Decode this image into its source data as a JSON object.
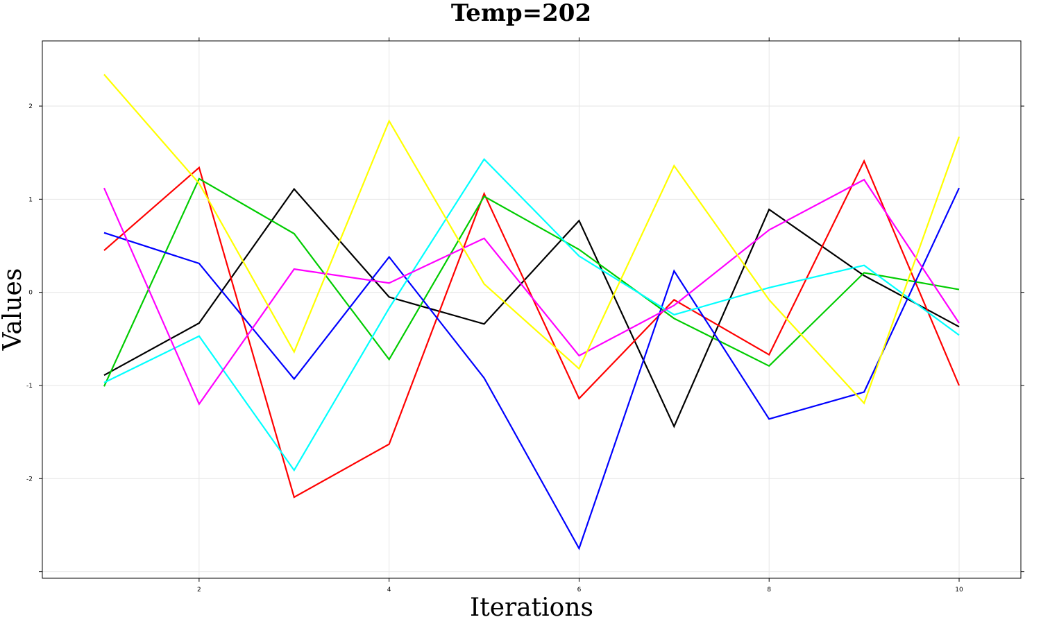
{
  "chart_data": {
    "type": "line",
    "title": "Temp=202",
    "xlabel": "Iterations",
    "ylabel": "Values",
    "xlim": [
      0.35,
      10.65
    ],
    "ylim": [
      -3.07,
      2.7
    ],
    "x_ticks": [
      2,
      4,
      6,
      8,
      10
    ],
    "y_ticks": [
      -3,
      -2,
      -1,
      0,
      1,
      2
    ],
    "y_tick_labels": [
      "",
      "-2",
      "-1",
      "0",
      "1",
      "2"
    ],
    "grid": true,
    "x": [
      1,
      2,
      3,
      4,
      5,
      6,
      7,
      8,
      9,
      10
    ],
    "series": [
      {
        "color": "#000000",
        "values": [
          -0.89,
          -0.33,
          1.11,
          -0.05,
          -0.34,
          0.77,
          -1.44,
          0.89,
          0.18,
          -0.37
        ]
      },
      {
        "color": "#ff0000",
        "values": [
          0.45,
          1.34,
          -2.2,
          -1.63,
          1.06,
          -1.14,
          -0.08,
          -0.67,
          1.41,
          -1.0
        ]
      },
      {
        "color": "#00cc00",
        "values": [
          -1.01,
          1.22,
          0.63,
          -0.72,
          1.03,
          0.46,
          -0.28,
          -0.79,
          0.21,
          0.03
        ]
      },
      {
        "color": "#0000ff",
        "values": [
          0.64,
          0.31,
          -0.93,
          0.38,
          -0.92,
          -2.75,
          0.23,
          -1.36,
          -1.07,
          1.12
        ]
      },
      {
        "color": "#00ffff",
        "values": [
          -0.97,
          -0.47,
          -1.91,
          -0.17,
          1.43,
          0.39,
          -0.24,
          0.05,
          0.29,
          -0.46
        ]
      },
      {
        "color": "#ff00ff",
        "values": [
          1.12,
          -1.2,
          0.25,
          0.1,
          0.58,
          -0.68,
          -0.14,
          0.67,
          1.21,
          -0.33
        ]
      },
      {
        "color": "#ffff00",
        "values": [
          2.34,
          1.17,
          -0.64,
          1.84,
          0.09,
          -0.82,
          1.36,
          -0.08,
          -1.19,
          1.67
        ]
      }
    ]
  }
}
